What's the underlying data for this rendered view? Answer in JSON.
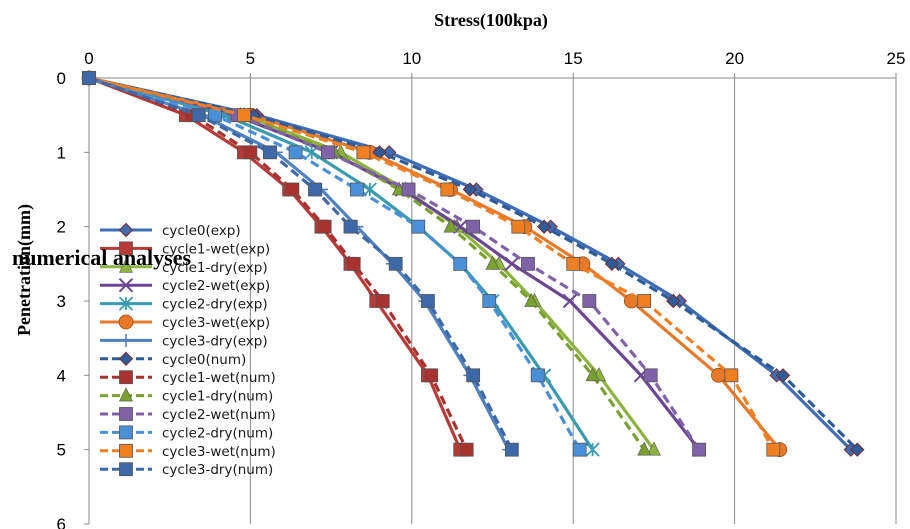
{
  "overlay_label": "numerical analyses",
  "chart_data": {
    "type": "line",
    "xlabel": "Stress(100kpa)",
    "ylabel": "Penetration(mm)",
    "xlim": [
      0,
      25
    ],
    "ylim": [
      0,
      6
    ],
    "x_ticks": [
      "0",
      "5",
      "10",
      "15",
      "20",
      "25"
    ],
    "y_ticks": [
      "0",
      "1",
      "2",
      "3",
      "4",
      "5",
      "6"
    ],
    "x_axis_position": "top",
    "y_axis_inverted": true,
    "grid": "vertical",
    "legend_position": "bottom-left",
    "series": [
      {
        "name": "cycle0(exp)",
        "color": "#3E6DB5",
        "dashed": false,
        "marker": "diamond",
        "x": [
          0,
          5.2,
          9.3,
          12.0,
          14.3,
          16.4,
          18.3,
          21.3,
          23.6
        ],
        "y": [
          0,
          0.5,
          1.0,
          1.5,
          2.0,
          2.5,
          3.0,
          4.0,
          5.0
        ]
      },
      {
        "name": "cycle1-wet(exp)",
        "color": "#B83A37",
        "dashed": false,
        "marker": "square",
        "x": [
          0,
          3.0,
          4.8,
          6.2,
          7.2,
          8.1,
          8.9,
          10.5,
          11.5
        ],
        "y": [
          0,
          0.5,
          1.0,
          1.5,
          2.0,
          2.5,
          3.0,
          4.0,
          5.0
        ]
      },
      {
        "name": "cycle1-dry(exp)",
        "color": "#8CB33D",
        "dashed": false,
        "marker": "triangle",
        "x": [
          0,
          4.8,
          7.8,
          9.8,
          11.4,
          12.7,
          13.8,
          15.8,
          17.5
        ],
        "y": [
          0,
          0.5,
          1.0,
          1.5,
          2.0,
          2.5,
          3.0,
          4.0,
          5.0
        ]
      },
      {
        "name": "cycle2-wet(exp)",
        "color": "#6B4693",
        "dashed": false,
        "marker": "x",
        "x": [
          0,
          4.5,
          7.5,
          9.7,
          11.5,
          13.1,
          14.9,
          17.1,
          18.9
        ],
        "y": [
          0,
          0.5,
          1.0,
          1.5,
          2.0,
          2.5,
          3.0,
          4.0,
          5.0
        ]
      },
      {
        "name": "cycle2-dry(exp)",
        "color": "#3A9AB0",
        "dashed": false,
        "marker": "star",
        "x": [
          0,
          4.2,
          6.9,
          8.7,
          10.2,
          11.5,
          12.5,
          14.1,
          15.6
        ],
        "y": [
          0,
          0.5,
          1.0,
          1.5,
          2.0,
          2.5,
          3.0,
          4.0,
          5.0
        ]
      },
      {
        "name": "cycle3-wet(exp)",
        "color": "#E8792A",
        "dashed": false,
        "marker": "circle",
        "x": [
          0,
          5.0,
          8.7,
          11.2,
          13.5,
          15.3,
          16.8,
          19.5,
          21.4
        ],
        "y": [
          0,
          0.5,
          1.0,
          1.5,
          2.0,
          2.5,
          3.0,
          4.0,
          5.0
        ]
      },
      {
        "name": "cycle3-dry(exp)",
        "color": "#4F81BD",
        "dashed": false,
        "marker": "plus",
        "x": [
          0,
          3.5,
          5.8,
          7.2,
          8.3,
          9.4,
          10.4,
          11.8,
          13.0
        ],
        "y": [
          0,
          0.5,
          1.0,
          1.5,
          2.0,
          2.5,
          3.0,
          4.0,
          5.0
        ]
      },
      {
        "name": "cycle0(num)",
        "color": "#2E5C99",
        "dashed": true,
        "marker": "diamond",
        "x": [
          0,
          5.1,
          9.0,
          11.8,
          14.1,
          16.2,
          18.1,
          21.5,
          23.8
        ],
        "y": [
          0,
          0.5,
          1.0,
          1.5,
          2.0,
          2.5,
          3.0,
          4.0,
          5.0
        ]
      },
      {
        "name": "cycle1-wet(num)",
        "color": "#A8322F",
        "dashed": true,
        "marker": "square",
        "x": [
          0,
          3.2,
          5.0,
          6.3,
          7.3,
          8.2,
          9.1,
          10.6,
          11.7
        ],
        "y": [
          0,
          0.5,
          1.0,
          1.5,
          2.0,
          2.5,
          3.0,
          4.0,
          5.0
        ]
      },
      {
        "name": "cycle1-dry(num)",
        "color": "#7AA02F",
        "dashed": true,
        "marker": "triangle",
        "x": [
          0,
          4.7,
          7.6,
          9.6,
          11.2,
          12.5,
          13.7,
          15.6,
          17.2
        ],
        "y": [
          0,
          0.5,
          1.0,
          1.5,
          2.0,
          2.5,
          3.0,
          4.0,
          5.0
        ]
      },
      {
        "name": "cycle2-wet(num)",
        "color": "#7F62A8",
        "dashed": true,
        "marker": "square",
        "x": [
          0,
          4.6,
          7.4,
          9.9,
          11.9,
          13.6,
          15.5,
          17.4,
          18.9
        ],
        "y": [
          0,
          0.5,
          1.0,
          1.5,
          2.0,
          2.5,
          3.0,
          4.0,
          5.0
        ]
      },
      {
        "name": "cycle2-dry(num)",
        "color": "#4A90D9",
        "dashed": true,
        "marker": "square",
        "x": [
          0,
          3.9,
          6.4,
          8.3,
          10.2,
          11.5,
          12.4,
          13.9,
          15.2
        ],
        "y": [
          0,
          0.5,
          1.0,
          1.5,
          2.0,
          2.5,
          3.0,
          4.0,
          5.0
        ]
      },
      {
        "name": "cycle3-wet(num)",
        "color": "#F07F22",
        "dashed": true,
        "marker": "square",
        "x": [
          0,
          4.8,
          8.5,
          11.1,
          13.3,
          15.0,
          17.2,
          19.9,
          21.2
        ],
        "y": [
          0,
          0.5,
          1.0,
          1.5,
          2.0,
          2.5,
          3.0,
          4.0,
          5.0
        ]
      },
      {
        "name": "cycle3-dry(num)",
        "color": "#3E68A8",
        "dashed": true,
        "marker": "square",
        "x": [
          0,
          3.4,
          5.6,
          7.0,
          8.1,
          9.5,
          10.5,
          11.9,
          13.1
        ],
        "y": [
          0,
          0.5,
          1.0,
          1.5,
          2.0,
          2.5,
          3.0,
          4.0,
          5.0
        ]
      }
    ]
  }
}
